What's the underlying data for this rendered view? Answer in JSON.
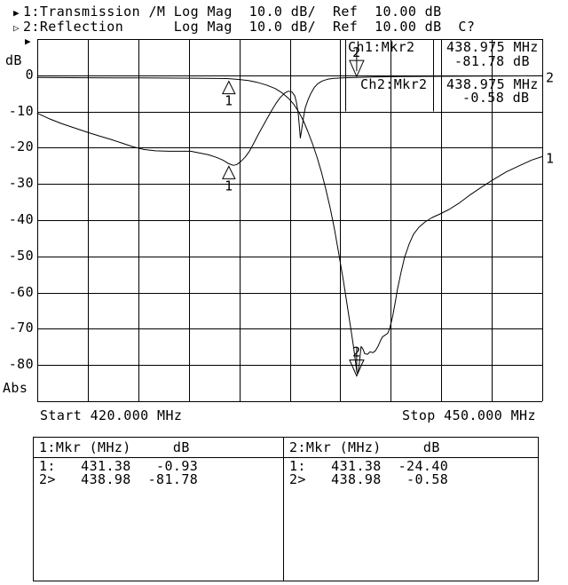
{
  "title_lines": [
    {
      "indicator": "▶",
      "text": "1:Transmission /M Log Mag  10.0 dB/  Ref  10.00 dB"
    },
    {
      "indicator": "▷",
      "text": "2:Reflection      Log Mag  10.0 dB/  Ref  10.00 dB  C?"
    }
  ],
  "ref_marker_symbol": "▶",
  "readout": {
    "ch1": {
      "label": "Ch1:Mkr2",
      "freq": "438.975 MHz",
      "value": "-81.78 dB"
    },
    "ch2": {
      "label": "Ch2:Mkr2",
      "freq": "438.975 MHz",
      "value": "-0.58 dB"
    }
  },
  "axis": {
    "y_unit": "dB",
    "y_bottom_label": "Abs",
    "x_start_label": "Start 420.000 MHz",
    "x_stop_label": "Stop 450.000 MHz"
  },
  "marker_table": {
    "left": {
      "header": "1:Mkr (MHz)     dB",
      "rows": [
        "1:   431.38   -0.93",
        "2>   438.98  -81.78"
      ]
    },
    "right": {
      "header": "2:Mkr (MHz)     dB",
      "rows": [
        "1:   431.38  -24.40",
        "2>   438.98   -0.58"
      ]
    }
  },
  "chart_data": {
    "type": "line",
    "title": "",
    "xlabel": "Start 420.000 MHz ... Stop 450.000 MHz",
    "ylabel": "dB",
    "x_range_mhz": [
      420,
      450
    ],
    "y_range_db": [
      -90,
      10
    ],
    "x_divisions": 10,
    "y_divisions": 10,
    "scale_db_per_div": 10.0,
    "ref_db": 10.0,
    "y_ticks": [
      0,
      -10,
      -20,
      -30,
      -40,
      -50,
      -60,
      -70,
      -80
    ],
    "grid": true,
    "series": [
      {
        "name": "1:Transmission",
        "end_label": "1",
        "points": [
          [
            420.0,
            -0.61
          ],
          [
            423.06,
            -0.68
          ],
          [
            426.22,
            -0.73
          ],
          [
            429.38,
            -0.8
          ],
          [
            430.7,
            -0.88
          ],
          [
            431.38,
            -0.93
          ],
          [
            432.02,
            -1.17
          ],
          [
            432.55,
            -1.46
          ],
          [
            433.07,
            -1.95
          ],
          [
            433.6,
            -2.68
          ],
          [
            434.13,
            -3.66
          ],
          [
            434.55,
            -4.88
          ],
          [
            434.92,
            -6.34
          ],
          [
            435.24,
            -8.05
          ],
          [
            435.55,
            -10.24
          ],
          [
            435.82,
            -12.68
          ],
          [
            436.08,
            -15.61
          ],
          [
            436.34,
            -18.78
          ],
          [
            436.61,
            -22.44
          ],
          [
            436.87,
            -26.59
          ],
          [
            437.13,
            -31.22
          ],
          [
            437.4,
            -36.59
          ],
          [
            437.66,
            -42.68
          ],
          [
            437.92,
            -49.51
          ],
          [
            438.19,
            -56.83
          ],
          [
            438.4,
            -63.17
          ],
          [
            438.61,
            -69.51
          ],
          [
            438.77,
            -74.39
          ],
          [
            438.87,
            -77.8
          ],
          [
            438.975,
            -81.78
          ],
          [
            439.03,
            -82.4
          ],
          [
            439.11,
            -80.49
          ],
          [
            439.19,
            -76.83
          ],
          [
            439.24,
            -74.88
          ],
          [
            439.35,
            -75.61
          ],
          [
            439.45,
            -76.83
          ],
          [
            439.61,
            -77.07
          ],
          [
            439.77,
            -76.34
          ],
          [
            439.93,
            -76.59
          ],
          [
            440.08,
            -76.1
          ],
          [
            440.24,
            -74.88
          ],
          [
            440.4,
            -73.17
          ],
          [
            440.51,
            -72.2
          ],
          [
            440.67,
            -71.71
          ],
          [
            440.82,
            -71.22
          ],
          [
            440.93,
            -70.0
          ],
          [
            441.09,
            -67.07
          ],
          [
            441.25,
            -63.17
          ],
          [
            441.4,
            -59.02
          ],
          [
            441.61,
            -54.39
          ],
          [
            441.82,
            -50.24
          ],
          [
            442.09,
            -46.59
          ],
          [
            442.35,
            -43.9
          ],
          [
            442.67,
            -41.95
          ],
          [
            443.04,
            -40.49
          ],
          [
            443.46,
            -39.27
          ],
          [
            443.93,
            -38.29
          ],
          [
            444.46,
            -37.07
          ],
          [
            445.04,
            -35.37
          ],
          [
            445.67,
            -33.17
          ],
          [
            446.36,
            -30.98
          ],
          [
            447.1,
            -28.78
          ],
          [
            447.89,
            -26.59
          ],
          [
            448.68,
            -24.88
          ],
          [
            449.37,
            -23.41
          ],
          [
            450.0,
            -22.44
          ]
        ]
      },
      {
        "name": "2:Reflection",
        "end_label": "2",
        "points": [
          [
            420.0,
            -10.49
          ],
          [
            420.69,
            -11.95
          ],
          [
            421.48,
            -13.41
          ],
          [
            422.27,
            -14.63
          ],
          [
            423.06,
            -15.85
          ],
          [
            423.74,
            -16.83
          ],
          [
            424.43,
            -17.8
          ],
          [
            425.06,
            -18.78
          ],
          [
            425.69,
            -19.76
          ],
          [
            426.33,
            -20.49
          ],
          [
            427.01,
            -20.85
          ],
          [
            427.8,
            -20.98
          ],
          [
            429.12,
            -20.98
          ],
          [
            429.65,
            -21.46
          ],
          [
            430.18,
            -21.95
          ],
          [
            430.65,
            -22.68
          ],
          [
            431.02,
            -23.41
          ],
          [
            431.38,
            -24.4
          ],
          [
            431.65,
            -24.88
          ],
          [
            431.86,
            -24.63
          ],
          [
            432.07,
            -23.9
          ],
          [
            432.34,
            -22.68
          ],
          [
            432.6,
            -20.98
          ],
          [
            432.86,
            -18.78
          ],
          [
            433.13,
            -16.34
          ],
          [
            433.39,
            -14.15
          ],
          [
            433.65,
            -11.95
          ],
          [
            433.92,
            -9.76
          ],
          [
            434.18,
            -7.8
          ],
          [
            434.44,
            -6.1
          ],
          [
            434.71,
            -4.88
          ],
          [
            434.92,
            -4.39
          ],
          [
            435.13,
            -4.63
          ],
          [
            435.29,
            -5.61
          ],
          [
            435.39,
            -7.32
          ],
          [
            435.5,
            -10.49
          ],
          [
            435.58,
            -14.63
          ],
          [
            435.63,
            -17.32
          ],
          [
            435.71,
            -14.88
          ],
          [
            435.82,
            -11.46
          ],
          [
            435.92,
            -9.02
          ],
          [
            436.08,
            -6.83
          ],
          [
            436.24,
            -5.12
          ],
          [
            436.45,
            -3.41
          ],
          [
            436.66,
            -2.32
          ],
          [
            436.92,
            -1.59
          ],
          [
            437.24,
            -1.1
          ],
          [
            437.61,
            -0.85
          ],
          [
            438.08,
            -0.73
          ],
          [
            438.975,
            -0.58
          ],
          [
            439.93,
            -0.49
          ],
          [
            441.51,
            -0.37
          ],
          [
            443.62,
            -0.29
          ],
          [
            445.73,
            -0.24
          ],
          [
            447.83,
            -0.2
          ],
          [
            450.0,
            -0.15
          ]
        ]
      }
    ],
    "markers": [
      {
        "trace": 1,
        "label": "1",
        "MHz": 431.38,
        "dB": -0.93,
        "dir": "up",
        "points_at": "trace"
      },
      {
        "trace": 2,
        "label": "1",
        "MHz": 431.38,
        "dB": -24.4,
        "dir": "up",
        "points_at": "trace"
      },
      {
        "trace": 2,
        "label": "2",
        "MHz": 438.975,
        "dB": -0.58,
        "dir": "down",
        "points_at": "trace"
      },
      {
        "trace": 1,
        "label": "2",
        "MHz": 438.975,
        "dB": -81.78,
        "dir": "down",
        "points_at": "minimum"
      }
    ]
  }
}
